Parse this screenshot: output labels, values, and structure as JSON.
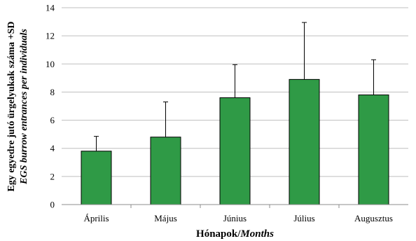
{
  "chart_data": {
    "type": "bar",
    "categories": [
      "Április",
      "Május",
      "Június",
      "Július",
      "Augusztus"
    ],
    "values": [
      3.8,
      4.8,
      7.6,
      8.9,
      7.8
    ],
    "error_upper": [
      4.85,
      7.3,
      9.95,
      12.95,
      10.3
    ],
    "ylim": [
      0,
      14
    ],
    "yticks": [
      0,
      2,
      4,
      6,
      8,
      10,
      12,
      14
    ],
    "ylabel": "Egy egyedre jutó ürgelyukak száma +SD",
    "ylabel_italic": "EGS burrow entrances per individuals",
    "xlabel": "Hónapok/",
    "xlabel_italic": "Months",
    "grid": true,
    "bar_color": "#2f9a46"
  }
}
